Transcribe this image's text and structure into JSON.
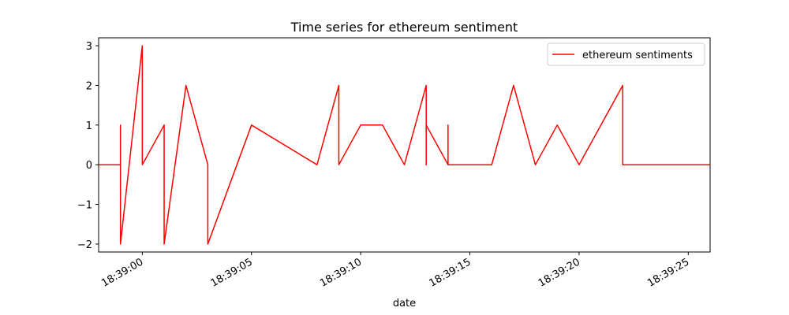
{
  "chart_data": {
    "type": "line",
    "title": "Time series for ethereum sentiment",
    "xlabel": "date",
    "ylabel": "",
    "x_unit": "seconds past 18:38:00",
    "xlim": [
      58.0,
      86.0
    ],
    "ylim": [
      -2.2,
      3.2
    ],
    "x_ticks": [
      60,
      65,
      70,
      75,
      80,
      85
    ],
    "x_tick_labels": [
      "18:39:00",
      "18:39:05",
      "18:39:10",
      "18:39:15",
      "18:39:20",
      "18:39:25"
    ],
    "y_ticks": [
      -2,
      -1,
      0,
      1,
      2,
      3
    ],
    "y_tick_labels": [
      "−2",
      "−1",
      "0",
      "1",
      "2",
      "3"
    ],
    "grid": false,
    "legend_position": "top-right",
    "series": [
      {
        "name": "ethereum sentiments",
        "color": "#ff0000",
        "x": [
          58,
          59,
          59,
          59,
          60,
          60,
          61,
          61,
          62,
          63,
          63,
          65,
          68,
          69,
          69,
          70,
          71,
          72,
          73,
          73,
          73,
          74,
          74,
          74,
          76,
          77,
          78,
          79,
          80,
          82,
          82,
          86
        ],
        "y": [
          0,
          0,
          1,
          -2,
          3,
          0,
          1,
          -2,
          2,
          0,
          -2,
          1,
          0,
          2,
          0,
          1,
          1,
          0,
          2,
          0,
          1,
          0,
          1,
          0,
          0,
          2,
          0,
          1,
          0,
          2,
          0,
          0
        ]
      }
    ]
  }
}
